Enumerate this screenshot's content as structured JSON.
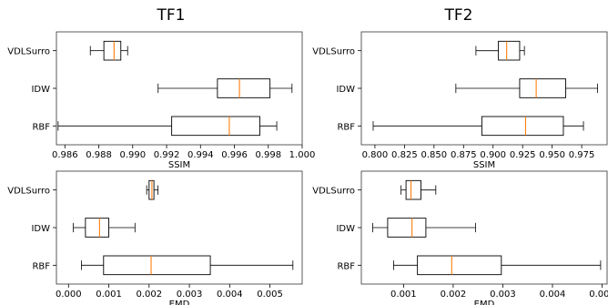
{
  "figure": {
    "column_titles": [
      "TF1",
      "TF2"
    ]
  },
  "chart_data": [
    {
      "type": "boxplot",
      "orientation": "horizontal",
      "column_title": "TF1",
      "xlabel": "SSIM",
      "xlim": [
        0.9855,
        1.0
      ],
      "xticks": [
        0.986,
        0.988,
        0.99,
        0.992,
        0.994,
        0.996,
        0.998,
        1.0
      ],
      "xtick_labels": [
        "0.986",
        "0.988",
        "0.990",
        "0.992",
        "0.994",
        "0.996",
        "0.998",
        "1.000"
      ],
      "categories": [
        "VDLSurro",
        "IDW",
        "RBF"
      ],
      "boxes": [
        {
          "name": "VDLSurro",
          "whislo": 0.9875,
          "q1": 0.9883,
          "med": 0.9889,
          "q3": 0.9893,
          "whishi": 0.9897
        },
        {
          "name": "IDW",
          "whislo": 0.9915,
          "q1": 0.995,
          "med": 0.9963,
          "q3": 0.9981,
          "whishi": 0.9994
        },
        {
          "name": "RBF",
          "whislo": 0.9856,
          "q1": 0.9923,
          "med": 0.9957,
          "q3": 0.9975,
          "whishi": 0.9985
        }
      ]
    },
    {
      "type": "boxplot",
      "orientation": "horizontal",
      "column_title": "TF2",
      "xlabel": "SSIM",
      "xlim": [
        0.7885,
        0.9965
      ],
      "xticks": [
        0.8,
        0.825,
        0.85,
        0.875,
        0.9,
        0.925,
        0.95,
        0.975
      ],
      "xtick_labels": [
        "0.800",
        "0.825",
        "0.850",
        "0.875",
        "0.900",
        "0.925",
        "0.950",
        "0.975"
      ],
      "categories": [
        "VDLSurro",
        "IDW",
        "RBF"
      ],
      "boxes": [
        {
          "name": "VDLSurro",
          "whislo": 0.8855,
          "q1": 0.9045,
          "med": 0.9115,
          "q3": 0.9225,
          "whishi": 0.9265
        },
        {
          "name": "IDW",
          "whislo": 0.8685,
          "q1": 0.9225,
          "med": 0.9365,
          "q3": 0.9615,
          "whishi": 0.9885
        },
        {
          "name": "RBF",
          "whislo": 0.7985,
          "q1": 0.8905,
          "med": 0.9275,
          "q3": 0.9595,
          "whishi": 0.9765
        }
      ]
    },
    {
      "type": "boxplot",
      "orientation": "horizontal",
      "column_title": "TF1",
      "xlabel": "EMD",
      "xlim": [
        -0.0003,
        0.0058
      ],
      "xticks": [
        0.0,
        0.001,
        0.002,
        0.003,
        0.004,
        0.005
      ],
      "xtick_labels": [
        "0.000",
        "0.001",
        "0.002",
        "0.003",
        "0.004",
        "0.005"
      ],
      "categories": [
        "VDLSurro",
        "IDW",
        "RBF"
      ],
      "boxes": [
        {
          "name": "VDLSurro",
          "whislo": 0.00194,
          "q1": 0.002,
          "med": 0.00207,
          "q3": 0.00212,
          "whishi": 0.00222
        },
        {
          "name": "IDW",
          "whislo": 0.00012,
          "q1": 0.00042,
          "med": 0.00077,
          "q3": 0.001,
          "whishi": 0.00165
        },
        {
          "name": "RBF",
          "whislo": 0.00032,
          "q1": 0.00087,
          "med": 0.00205,
          "q3": 0.00352,
          "whishi": 0.00557
        }
      ]
    },
    {
      "type": "boxplot",
      "orientation": "horizontal",
      "column_title": "TF2",
      "xlabel": "EMD",
      "xlim": [
        0.00015,
        0.0051
      ],
      "xticks": [
        0.001,
        0.002,
        0.003,
        0.004,
        0.005
      ],
      "xtick_labels": [
        "0.001",
        "0.002",
        "0.003",
        "0.004",
        "0.005"
      ],
      "categories": [
        "VDLSurro",
        "IDW",
        "RBF"
      ],
      "boxes": [
        {
          "name": "VDLSurro",
          "whislo": 0.00095,
          "q1": 0.00105,
          "med": 0.00115,
          "q3": 0.00135,
          "whishi": 0.00165
        },
        {
          "name": "IDW",
          "whislo": 0.00038,
          "q1": 0.00068,
          "med": 0.00117,
          "q3": 0.00145,
          "whishi": 0.00245
        },
        {
          "name": "RBF",
          "whislo": 0.0008,
          "q1": 0.00128,
          "med": 0.00197,
          "q3": 0.00297,
          "whishi": 0.00497
        }
      ]
    }
  ],
  "colors": {
    "box_edge": "#000000",
    "median": "#ff7f0e",
    "axes_edge": "#333333",
    "background": "#ffffff"
  }
}
